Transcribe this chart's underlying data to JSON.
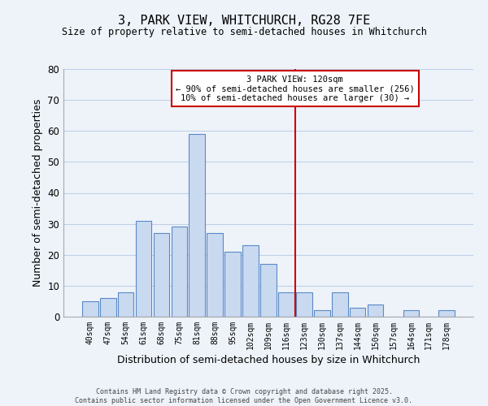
{
  "title": "3, PARK VIEW, WHITCHURCH, RG28 7FE",
  "subtitle": "Size of property relative to semi-detached houses in Whitchurch",
  "xlabel": "Distribution of semi-detached houses by size in Whitchurch",
  "ylabel": "Number of semi-detached properties",
  "bar_labels": [
    "40sqm",
    "47sqm",
    "54sqm",
    "61sqm",
    "68sqm",
    "75sqm",
    "81sqm",
    "88sqm",
    "95sqm",
    "102sqm",
    "109sqm",
    "116sqm",
    "123sqm",
    "130sqm",
    "137sqm",
    "144sqm",
    "150sqm",
    "157sqm",
    "164sqm",
    "171sqm",
    "178sqm"
  ],
  "bar_values": [
    5,
    6,
    8,
    31,
    27,
    29,
    59,
    27,
    21,
    23,
    17,
    8,
    8,
    2,
    8,
    3,
    4,
    0,
    2,
    0,
    2
  ],
  "bar_color": "#c9d9f0",
  "bar_edge_color": "#5a8ac6",
  "grid_color": "#c0d0e8",
  "background_color": "#eef3fa",
  "vline_x": 11.5,
  "vline_color": "#cc0000",
  "annotation_title": "3 PARK VIEW: 120sqm",
  "annotation_line1": "← 90% of semi-detached houses are smaller (256)",
  "annotation_line2": "10% of semi-detached houses are larger (30) →",
  "ylim": [
    0,
    80
  ],
  "yticks": [
    0,
    10,
    20,
    30,
    40,
    50,
    60,
    70,
    80
  ],
  "footer1": "Contains HM Land Registry data © Crown copyright and database right 2025.",
  "footer2": "Contains public sector information licensed under the Open Government Licence v3.0."
}
